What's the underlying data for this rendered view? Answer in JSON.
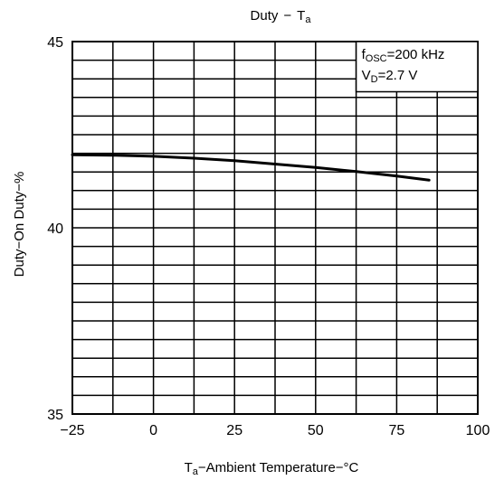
{
  "chart_data": {
    "type": "line",
    "title": {
      "main": "Duty",
      "dash": "−",
      "var": "T",
      "var_sub": "a"
    },
    "xlabel": {
      "var": "T",
      "var_sub": "a",
      "text": "−Ambient Temperature−°C"
    },
    "ylabel": "Duty−On Duty−%",
    "xlim": [
      -25,
      100
    ],
    "ylim": [
      35,
      45
    ],
    "x_grid_step": 12.5,
    "y_grid_step": 0.5,
    "grid": true,
    "x_tick_labels": [
      {
        "value": -25,
        "text": "−25"
      },
      {
        "value": 0,
        "text": "0"
      },
      {
        "value": 25,
        "text": "25"
      },
      {
        "value": 50,
        "text": "50"
      },
      {
        "value": 75,
        "text": "75"
      },
      {
        "value": 100,
        "text": "100"
      }
    ],
    "y_tick_labels": [
      {
        "value": 35,
        "text": "35"
      },
      {
        "value": 40,
        "text": "40"
      },
      {
        "value": 45,
        "text": "45"
      }
    ],
    "legend": {
      "placement": "top-right",
      "lines": [
        {
          "var": "f",
          "var_sub": "OSC",
          "text": "=200 kHz"
        },
        {
          "var": "V",
          "var_sub": "D",
          "text": "=2.7 V"
        }
      ]
    },
    "series": [
      {
        "x": [
          -25,
          -12.5,
          0,
          12.5,
          25,
          37.5,
          50,
          62.5,
          75,
          85
        ],
        "y": [
          41.96,
          41.95,
          41.92,
          41.87,
          41.8,
          41.71,
          41.62,
          41.51,
          41.39,
          41.28
        ]
      }
    ]
  }
}
